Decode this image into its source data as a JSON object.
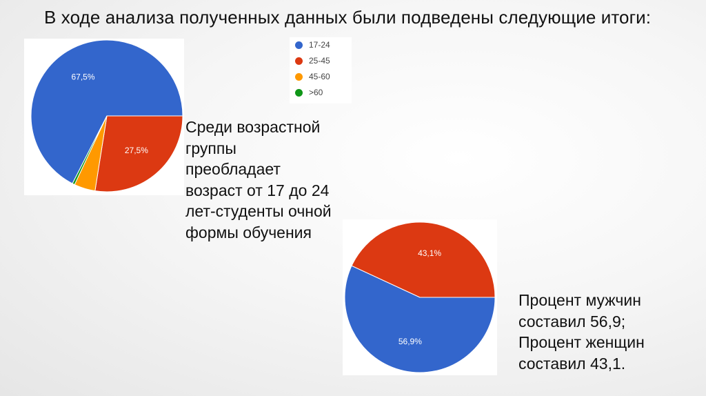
{
  "slide": {
    "title": "В ходе анализа полученных данных были подведены следующие итоги:"
  },
  "age_note": {
    "lines": [
      "Среди возрастной",
      "группы",
      "преобладает",
      "возраст от 17 до 24",
      "лет-студенты очной",
      "формы обучения"
    ]
  },
  "gender_note": {
    "lines": [
      "Процент мужчин",
      "составил 56,9;",
      "Процент женщин",
      "составил 43,1."
    ]
  },
  "chart_data": [
    {
      "type": "pie",
      "title": "",
      "legend_position": "top-right",
      "slices": [
        {
          "label": "17-24",
          "value": 67.5,
          "display": "67,5%",
          "color": "#3366cc"
        },
        {
          "label": "25-45",
          "value": 27.5,
          "display": "27,5%",
          "color": "#dc3912"
        },
        {
          "label": "45-60",
          "value": 4.5,
          "display": "",
          "color": "#ff9900"
        },
        {
          "label": ">60",
          "value": 0.5,
          "display": "",
          "color": "#109618"
        }
      ]
    },
    {
      "type": "pie",
      "title": "",
      "legend_position": "none",
      "slices": [
        {
          "label": "",
          "value": 56.9,
          "display": "56,9%",
          "color": "#3366cc"
        },
        {
          "label": "",
          "value": 43.1,
          "display": "43,1%",
          "color": "#dc3912"
        }
      ]
    }
  ]
}
